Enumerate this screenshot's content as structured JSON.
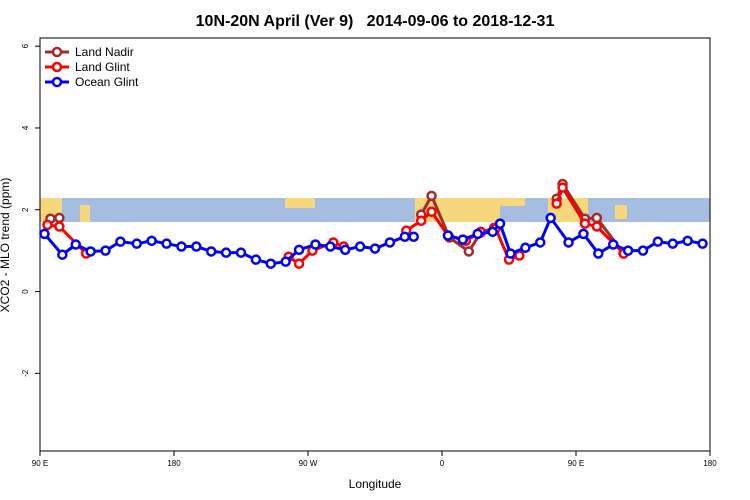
{
  "chart_data": {
    "type": "line",
    "title": "10N-20N April (Ver 9)   2014-09-06 to 2018-12-31",
    "xlabel": "Longitude",
    "ylabel": "XCO2 - MLO trend (ppm)",
    "xlim": [
      90,
      540
    ],
    "xticks": [
      {
        "value": 90,
        "label": "90 E"
      },
      {
        "value": 180,
        "label": "180"
      },
      {
        "value": 270,
        "label": "90 W"
      },
      {
        "value": 360,
        "label": "0"
      },
      {
        "value": 450,
        "label": "90 E"
      },
      {
        "value": 540,
        "label": "180"
      }
    ],
    "ylim": [
      -3.9,
      6.2
    ],
    "yticks": [
      -2,
      0,
      2,
      4,
      6
    ],
    "legend": "top-left",
    "series": [
      {
        "name": "Land Nadir",
        "color": "#a52a2a",
        "x": [
          97,
          103,
          200,
          346,
          353,
          365,
          378,
          386,
          395,
          415,
          437,
          441,
          456,
          464,
          482
        ],
        "values": [
          1.78,
          1.8,
          null,
          1.88,
          2.34,
          1.32,
          0.98,
          1.44,
          1.56,
          null,
          2.27,
          2.63,
          1.78,
          1.8,
          0.93
        ]
      },
      {
        "name": "Land Glint",
        "color": "#ff0000",
        "x": [
          95,
          103,
          121,
          190,
          257,
          264,
          273,
          287,
          294,
          315,
          336,
          346,
          353,
          364,
          376,
          386,
          396,
          405,
          412,
          425,
          437,
          441,
          456,
          464,
          482
        ],
        "values": [
          1.63,
          1.59,
          0.93,
          null,
          0.85,
          0.68,
          1.0,
          1.2,
          1.1,
          null,
          1.49,
          1.73,
          1.95,
          1.37,
          1.24,
          1.46,
          1.54,
          0.78,
          0.88,
          null,
          2.15,
          2.54,
          1.66,
          1.59,
          0.93
        ]
      },
      {
        "name": "Ocean Glint",
        "color": "#0000ff",
        "x": [
          93,
          105,
          114,
          124,
          134,
          144,
          155,
          165,
          175,
          185,
          195,
          205,
          215,
          225,
          235,
          245,
          255,
          264,
          275,
          285,
          295,
          305,
          315,
          325,
          335,
          341,
          352,
          364,
          374,
          384,
          394,
          399,
          406,
          416,
          426,
          433,
          445,
          455,
          465,
          475,
          485,
          495,
          505,
          515,
          525,
          535
        ],
        "values": [
          1.41,
          0.9,
          1.15,
          0.98,
          1.0,
          1.22,
          1.17,
          1.24,
          1.17,
          1.1,
          1.1,
          0.98,
          0.95,
          0.95,
          0.78,
          0.68,
          0.73,
          1.02,
          1.15,
          1.1,
          1.02,
          1.1,
          1.05,
          1.2,
          1.34,
          1.34,
          null,
          1.37,
          1.27,
          1.41,
          1.46,
          1.66,
          0.93,
          1.07,
          1.2,
          1.8,
          1.2,
          1.41,
          0.93,
          1.15,
          1.0,
          1.0,
          1.22,
          1.17,
          1.24,
          1.17
        ]
      }
    ]
  }
}
